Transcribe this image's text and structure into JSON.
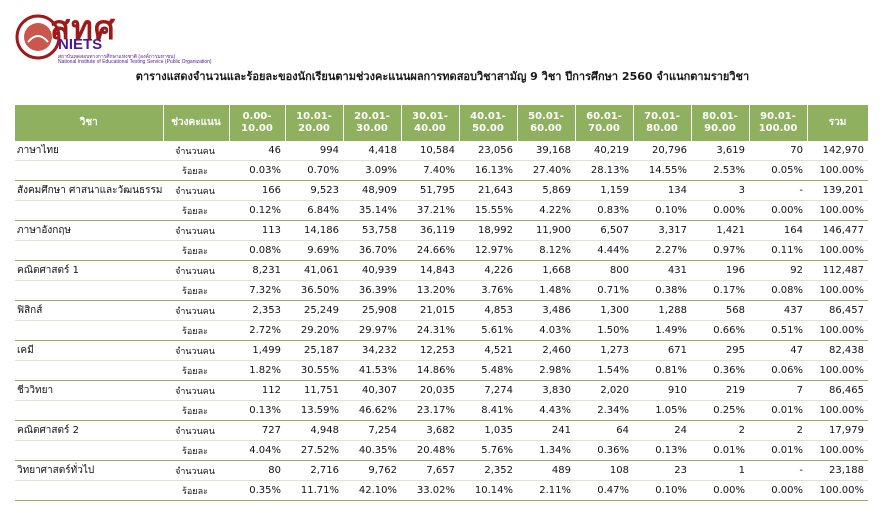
{
  "logo": {
    "mark": "สทศ",
    "acronym": "NIETS",
    "line1": "สถาบันทดสอบทางการศึกษาแห่งชาติ (องค์การมหาชน)",
    "line2": "National Institute of Educational Testing Service (Public Organization)"
  },
  "title": "ตารางแสดงจำนวนและร้อยละของนักเรียนตามช่วงคะแนนผลการทดสอบวิชาสามัญ 9 วิชา ปีการศึกษา 2560 จำแนกตามรายวิชา",
  "headers": {
    "subject": "วิชา",
    "range": "ช่วงคะแนน",
    "bins": [
      "0.00-\n10.00",
      "10.01-\n20.00",
      "20.01-\n30.00",
      "30.01-\n40.00",
      "40.01-\n50.00",
      "50.01-\n60.00",
      "60.01-\n70.00",
      "70.01-\n80.00",
      "80.01-\n90.00",
      "90.01-\n100.00"
    ],
    "total": "รวม"
  },
  "labels": {
    "count": "จำนวนคน",
    "percent": "ร้อยละ"
  },
  "rows": [
    {
      "subject": "ภาษาไทย",
      "count": [
        "46",
        "994",
        "4,418",
        "10,584",
        "23,056",
        "39,168",
        "40,219",
        "20,796",
        "3,619",
        "70",
        "142,970"
      ],
      "percent": [
        "0.03%",
        "0.70%",
        "3.09%",
        "7.40%",
        "16.13%",
        "27.40%",
        "28.13%",
        "14.55%",
        "2.53%",
        "0.05%",
        "100.00%"
      ]
    },
    {
      "subject": "สังคมศึกษา ศาสนาและวัฒนธรรม",
      "count": [
        "166",
        "9,523",
        "48,909",
        "51,795",
        "21,643",
        "5,869",
        "1,159",
        "134",
        "3",
        "-",
        "139,201"
      ],
      "percent": [
        "0.12%",
        "6.84%",
        "35.14%",
        "37.21%",
        "15.55%",
        "4.22%",
        "0.83%",
        "0.10%",
        "0.00%",
        "0.00%",
        "100.00%"
      ]
    },
    {
      "subject": "ภาษาอังกฤษ",
      "count": [
        "113",
        "14,186",
        "53,758",
        "36,119",
        "18,992",
        "11,900",
        "6,507",
        "3,317",
        "1,421",
        "164",
        "146,477"
      ],
      "percent": [
        "0.08%",
        "9.69%",
        "36.70%",
        "24.66%",
        "12.97%",
        "8.12%",
        "4.44%",
        "2.27%",
        "0.97%",
        "0.11%",
        "100.00%"
      ]
    },
    {
      "subject": "คณิตศาสตร์ 1",
      "count": [
        "8,231",
        "41,061",
        "40,939",
        "14,843",
        "4,226",
        "1,668",
        "800",
        "431",
        "196",
        "92",
        "112,487"
      ],
      "percent": [
        "7.32%",
        "36.50%",
        "36.39%",
        "13.20%",
        "3.76%",
        "1.48%",
        "0.71%",
        "0.38%",
        "0.17%",
        "0.08%",
        "100.00%"
      ]
    },
    {
      "subject": "ฟิสิกส์",
      "count": [
        "2,353",
        "25,249",
        "25,908",
        "21,015",
        "4,853",
        "3,486",
        "1,300",
        "1,288",
        "568",
        "437",
        "86,457"
      ],
      "percent": [
        "2.72%",
        "29.20%",
        "29.97%",
        "24.31%",
        "5.61%",
        "4.03%",
        "1.50%",
        "1.49%",
        "0.66%",
        "0.51%",
        "100.00%"
      ]
    },
    {
      "subject": "เคมี",
      "count": [
        "1,499",
        "25,187",
        "34,232",
        "12,253",
        "4,521",
        "2,460",
        "1,273",
        "671",
        "295",
        "47",
        "82,438"
      ],
      "percent": [
        "1.82%",
        "30.55%",
        "41.53%",
        "14.86%",
        "5.48%",
        "2.98%",
        "1.54%",
        "0.81%",
        "0.36%",
        "0.06%",
        "100.00%"
      ]
    },
    {
      "subject": "ชีววิทยา",
      "count": [
        "112",
        "11,751",
        "40,307",
        "20,035",
        "7,274",
        "3,830",
        "2,020",
        "910",
        "219",
        "7",
        "86,465"
      ],
      "percent": [
        "0.13%",
        "13.59%",
        "46.62%",
        "23.17%",
        "8.41%",
        "4.43%",
        "2.34%",
        "1.05%",
        "0.25%",
        "0.01%",
        "100.00%"
      ]
    },
    {
      "subject": "คณิตศาสตร์ 2",
      "count": [
        "727",
        "4,948",
        "7,254",
        "3,682",
        "1,035",
        "241",
        "64",
        "24",
        "2",
        "2",
        "17,979"
      ],
      "percent": [
        "4.04%",
        "27.52%",
        "40.35%",
        "20.48%",
        "5.76%",
        "1.34%",
        "0.36%",
        "0.13%",
        "0.01%",
        "0.01%",
        "100.00%"
      ]
    },
    {
      "subject": "วิทยาศาสตร์ทั่วไป",
      "count": [
        "80",
        "2,716",
        "9,762",
        "7,657",
        "2,352",
        "489",
        "108",
        "23",
        "1",
        "-",
        "23,188"
      ],
      "percent": [
        "0.35%",
        "11.71%",
        "42.10%",
        "33.02%",
        "10.14%",
        "2.11%",
        "0.47%",
        "0.10%",
        "0.00%",
        "0.00%",
        "100.00%"
      ]
    }
  ]
}
